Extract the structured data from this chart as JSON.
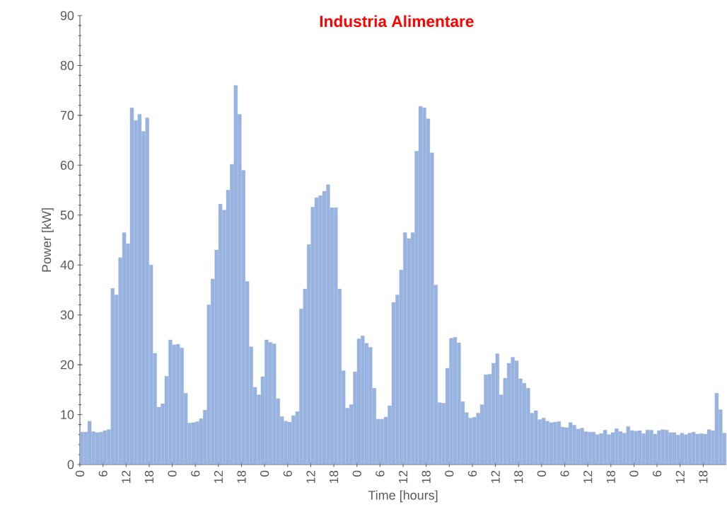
{
  "chart_data": {
    "type": "bar",
    "title": "Industria Alimentare",
    "xlabel": "Time [hours]",
    "ylabel": "Power [kW]",
    "color": "#97b3e2",
    "categories": [
      "0",
      null,
      null,
      null,
      null,
      null,
      "6",
      null,
      null,
      null,
      null,
      null,
      "12",
      null,
      null,
      null,
      null,
      null,
      "18",
      null,
      null,
      null,
      null,
      null,
      "0",
      null,
      null,
      null,
      null,
      null,
      "6",
      null,
      null,
      null,
      null,
      null,
      "12",
      null,
      null,
      null,
      null,
      null,
      "18",
      null,
      null,
      null,
      null,
      null,
      "0",
      null,
      null,
      null,
      null,
      null,
      "6",
      null,
      null,
      null,
      null,
      null,
      "12",
      null,
      null,
      null,
      null,
      null,
      "18",
      null,
      null,
      null,
      null,
      null,
      "0",
      null,
      null,
      null,
      null,
      null,
      "6",
      null,
      null,
      null,
      null,
      null,
      "12",
      null,
      null,
      null,
      null,
      null,
      "18",
      null,
      null,
      null,
      null,
      null,
      "0",
      null,
      null,
      null,
      null,
      null,
      "6",
      null,
      null,
      null,
      null,
      null,
      "12",
      null,
      null,
      null,
      null,
      null,
      "18",
      null,
      null,
      null,
      null,
      null,
      "0",
      null,
      null,
      null,
      null,
      null,
      "6",
      null,
      null,
      null,
      null,
      null,
      "12",
      null,
      null,
      null,
      null,
      null,
      "18",
      null,
      null,
      null,
      null,
      null,
      "0",
      null,
      null,
      null,
      null,
      null,
      "6",
      null,
      null,
      null,
      null,
      null,
      "12",
      null,
      null,
      null,
      null,
      null,
      "18",
      null,
      null,
      null,
      null,
      null
    ],
    "values": [
      6.5,
      6.5,
      8.7,
      6.6,
      6.4,
      6.5,
      6.8,
      7.0,
      35.3,
      34,
      41.5,
      46.5,
      44.3,
      71.5,
      69,
      70.2,
      66.8,
      69.5,
      40,
      22.3,
      11.5,
      12.2,
      17.7,
      25,
      24,
      24.1,
      23.4,
      14.3,
      8.3,
      8.4,
      8.6,
      9.2,
      10.9,
      32,
      37.2,
      43,
      52.2,
      51,
      55,
      60.2,
      76,
      70.2,
      59,
      36.7,
      23.6,
      15.5,
      14,
      17.6,
      25,
      24.5,
      24.2,
      13.2,
      9.6,
      8.7,
      8.5,
      9.8,
      10.6,
      31.2,
      35.2,
      44.1,
      51.6,
      53.5,
      53.9,
      54.8,
      56.1,
      51.5,
      51.5,
      35.2,
      18.8,
      11.3,
      12,
      18.6,
      25.2,
      25.8,
      24.3,
      23.5,
      15.3,
      9.1,
      9.1,
      9.5,
      11.8,
      32.5,
      34,
      39,
      46.5,
      45.3,
      46.5,
      62.8,
      71.8,
      71.5,
      69.3,
      62.5,
      36,
      12.4,
      12.3,
      19.3,
      25.3,
      25.5,
      24.4,
      12.6,
      10.4,
      9.3,
      9.5,
      10.3,
      12,
      18,
      18.1,
      20.3,
      22.2,
      14,
      17.3,
      20.3,
      21.5,
      20.8,
      17.2,
      16.3,
      15.3,
      10.3,
      10.8,
      9,
      9.3,
      8.7,
      8.4,
      8.5,
      8.6,
      7.5,
      7.4,
      8.4,
      7.9,
      7.1,
      7.3,
      6.6,
      6.5,
      6.5,
      6.0,
      6.2,
      6.9,
      6.0,
      6.4,
      7.2,
      6.6,
      6.3,
      7.6,
      6.8,
      6.7,
      6.8,
      6.2,
      6.9,
      6.9,
      6.1,
      6.8,
      7.0,
      6.9,
      6.4,
      6.4,
      5.9,
      6.3,
      6.0,
      6.3,
      6.5,
      6.1,
      6.2,
      6.1,
      7.0,
      6.8,
      14.3,
      11,
      6.3
    ],
    "ylim": [
      0,
      90
    ],
    "yticks": [
      0,
      10,
      20,
      30,
      40,
      50,
      60,
      70,
      80,
      90
    ]
  }
}
